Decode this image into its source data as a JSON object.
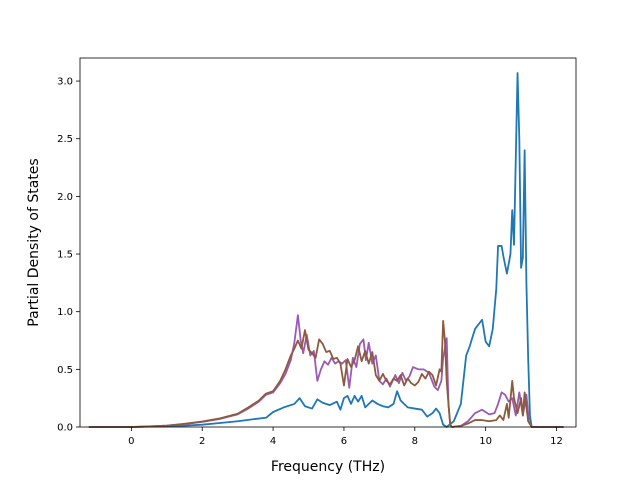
{
  "chart_data": {
    "type": "line",
    "title": "",
    "xlabel": "Frequency (THz)",
    "ylabel": "Partial Density of States",
    "xlim": [
      -1.45,
      12.55
    ],
    "ylim": [
      0.0,
      3.2
    ],
    "xticks": [
      0,
      2,
      4,
      6,
      8,
      10,
      12
    ],
    "xtick_labels": [
      "0",
      "2",
      "4",
      "6",
      "8",
      "10",
      "12"
    ],
    "yticks": [
      0.0,
      0.5,
      1.0,
      1.5,
      2.0,
      2.5,
      3.0
    ],
    "ytick_labels": [
      "0.0",
      "0.5",
      "1.0",
      "1.5",
      "2.0",
      "2.5",
      "3.0"
    ],
    "grid": false,
    "legend": "none",
    "series": [
      {
        "color": "#1f77b4",
        "points": [
          [
            -1.2,
            0
          ],
          [
            0,
            0
          ],
          [
            0.5,
            0.003
          ],
          [
            1,
            0.006
          ],
          [
            1.5,
            0.012
          ],
          [
            2,
            0.02
          ],
          [
            2.5,
            0.035
          ],
          [
            3,
            0.05
          ],
          [
            3.5,
            0.07
          ],
          [
            3.8,
            0.08
          ],
          [
            4,
            0.13
          ],
          [
            4.3,
            0.17
          ],
          [
            4.6,
            0.2
          ],
          [
            4.75,
            0.25
          ],
          [
            4.9,
            0.18
          ],
          [
            5.1,
            0.16
          ],
          [
            5.25,
            0.24
          ],
          [
            5.4,
            0.21
          ],
          [
            5.6,
            0.19
          ],
          [
            5.8,
            0.22
          ],
          [
            5.9,
            0.15
          ],
          [
            6.0,
            0.25
          ],
          [
            6.1,
            0.27
          ],
          [
            6.2,
            0.2
          ],
          [
            6.3,
            0.27
          ],
          [
            6.4,
            0.22
          ],
          [
            6.5,
            0.27
          ],
          [
            6.6,
            0.17
          ],
          [
            6.8,
            0.23
          ],
          [
            6.95,
            0.2
          ],
          [
            7.1,
            0.18
          ],
          [
            7.25,
            0.17
          ],
          [
            7.4,
            0.2
          ],
          [
            7.5,
            0.31
          ],
          [
            7.6,
            0.23
          ],
          [
            7.8,
            0.17
          ],
          [
            8.0,
            0.16
          ],
          [
            8.2,
            0.15
          ],
          [
            8.35,
            0.09
          ],
          [
            8.5,
            0.12
          ],
          [
            8.6,
            0.16
          ],
          [
            8.7,
            0.12
          ],
          [
            8.8,
            0.02
          ],
          [
            8.9,
            0
          ],
          [
            9.1,
            0.05
          ],
          [
            9.3,
            0.2
          ],
          [
            9.45,
            0.62
          ],
          [
            9.55,
            0.7
          ],
          [
            9.7,
            0.85
          ],
          [
            9.9,
            0.93
          ],
          [
            10.0,
            0.74
          ],
          [
            10.1,
            0.7
          ],
          [
            10.2,
            0.85
          ],
          [
            10.3,
            1.2
          ],
          [
            10.35,
            1.57
          ],
          [
            10.45,
            1.57
          ],
          [
            10.5,
            1.48
          ],
          [
            10.6,
            1.33
          ],
          [
            10.7,
            1.5
          ],
          [
            10.75,
            1.88
          ],
          [
            10.8,
            1.58
          ],
          [
            10.9,
            3.07
          ],
          [
            10.95,
            2.5
          ],
          [
            11.0,
            1.38
          ],
          [
            11.05,
            1.47
          ],
          [
            11.1,
            2.4
          ],
          [
            11.15,
            1.25
          ],
          [
            11.2,
            0.6
          ],
          [
            11.25,
            0.1
          ],
          [
            11.3,
            0
          ],
          [
            12.2,
            0
          ]
        ]
      },
      {
        "color": "#9b59b6",
        "points": [
          [
            -1.2,
            0
          ],
          [
            0,
            0
          ],
          [
            0.5,
            0.005
          ],
          [
            1,
            0.012
          ],
          [
            1.5,
            0.025
          ],
          [
            2,
            0.045
          ],
          [
            2.5,
            0.07
          ],
          [
            3,
            0.11
          ],
          [
            3.3,
            0.16
          ],
          [
            3.6,
            0.22
          ],
          [
            3.8,
            0.28
          ],
          [
            4.0,
            0.3
          ],
          [
            4.2,
            0.38
          ],
          [
            4.35,
            0.46
          ],
          [
            4.5,
            0.58
          ],
          [
            4.6,
            0.73
          ],
          [
            4.7,
            0.97
          ],
          [
            4.78,
            0.75
          ],
          [
            4.85,
            0.64
          ],
          [
            4.95,
            0.8
          ],
          [
            5.05,
            0.62
          ],
          [
            5.15,
            0.66
          ],
          [
            5.25,
            0.4
          ],
          [
            5.35,
            0.5
          ],
          [
            5.45,
            0.57
          ],
          [
            5.55,
            0.54
          ],
          [
            5.65,
            0.6
          ],
          [
            5.75,
            0.55
          ],
          [
            5.85,
            0.57
          ],
          [
            5.95,
            0.55
          ],
          [
            6.05,
            0.58
          ],
          [
            6.15,
            0.34
          ],
          [
            6.25,
            0.6
          ],
          [
            6.35,
            0.52
          ],
          [
            6.45,
            0.72
          ],
          [
            6.55,
            0.76
          ],
          [
            6.62,
            0.58
          ],
          [
            6.7,
            0.73
          ],
          [
            6.8,
            0.55
          ],
          [
            6.9,
            0.62
          ],
          [
            7.0,
            0.4
          ],
          [
            7.1,
            0.37
          ],
          [
            7.2,
            0.42
          ],
          [
            7.3,
            0.35
          ],
          [
            7.45,
            0.45
          ],
          [
            7.55,
            0.38
          ],
          [
            7.65,
            0.47
          ],
          [
            7.75,
            0.4
          ],
          [
            7.85,
            0.44
          ],
          [
            7.95,
            0.52
          ],
          [
            8.1,
            0.5
          ],
          [
            8.25,
            0.5
          ],
          [
            8.4,
            0.47
          ],
          [
            8.55,
            0.35
          ],
          [
            8.65,
            0.32
          ],
          [
            8.75,
            0.4
          ],
          [
            8.8,
            0.6
          ],
          [
            8.9,
            0.77
          ],
          [
            8.95,
            0.2
          ],
          [
            9.0,
            0.02
          ],
          [
            9.05,
            0
          ],
          [
            9.3,
            0.01
          ],
          [
            9.5,
            0.05
          ],
          [
            9.7,
            0.12
          ],
          [
            9.9,
            0.15
          ],
          [
            10.1,
            0.11
          ],
          [
            10.25,
            0.12
          ],
          [
            10.35,
            0.2
          ],
          [
            10.45,
            0.3
          ],
          [
            10.55,
            0.28
          ],
          [
            10.65,
            0.22
          ],
          [
            10.75,
            0.25
          ],
          [
            10.85,
            0.1
          ],
          [
            10.95,
            0.3
          ],
          [
            11.05,
            0.1
          ],
          [
            11.15,
            0.28
          ],
          [
            11.22,
            0.05
          ],
          [
            11.3,
            0
          ],
          [
            12.2,
            0
          ]
        ]
      },
      {
        "color": "#8c5a3c",
        "points": [
          [
            -1.2,
            0
          ],
          [
            0,
            0
          ],
          [
            0.5,
            0.005
          ],
          [
            1,
            0.012
          ],
          [
            1.5,
            0.028
          ],
          [
            2,
            0.048
          ],
          [
            2.5,
            0.075
          ],
          [
            3,
            0.115
          ],
          [
            3.3,
            0.17
          ],
          [
            3.6,
            0.23
          ],
          [
            3.8,
            0.29
          ],
          [
            4.0,
            0.31
          ],
          [
            4.2,
            0.4
          ],
          [
            4.35,
            0.5
          ],
          [
            4.5,
            0.62
          ],
          [
            4.6,
            0.68
          ],
          [
            4.7,
            0.75
          ],
          [
            4.8,
            0.68
          ],
          [
            4.9,
            0.84
          ],
          [
            5.0,
            0.67
          ],
          [
            5.1,
            0.64
          ],
          [
            5.2,
            0.6
          ],
          [
            5.3,
            0.76
          ],
          [
            5.4,
            0.72
          ],
          [
            5.5,
            0.65
          ],
          [
            5.6,
            0.66
          ],
          [
            5.7,
            0.59
          ],
          [
            5.8,
            0.6
          ],
          [
            5.9,
            0.55
          ],
          [
            6.0,
            0.36
          ],
          [
            6.1,
            0.59
          ],
          [
            6.2,
            0.52
          ],
          [
            6.3,
            0.58
          ],
          [
            6.4,
            0.7
          ],
          [
            6.5,
            0.57
          ],
          [
            6.6,
            0.66
          ],
          [
            6.7,
            0.55
          ],
          [
            6.8,
            0.65
          ],
          [
            6.9,
            0.45
          ],
          [
            7.0,
            0.4
          ],
          [
            7.1,
            0.46
          ],
          [
            7.2,
            0.4
          ],
          [
            7.3,
            0.37
          ],
          [
            7.4,
            0.42
          ],
          [
            7.5,
            0.4
          ],
          [
            7.6,
            0.45
          ],
          [
            7.7,
            0.36
          ],
          [
            7.8,
            0.42
          ],
          [
            7.9,
            0.38
          ],
          [
            8.0,
            0.36
          ],
          [
            8.1,
            0.39
          ],
          [
            8.2,
            0.46
          ],
          [
            8.3,
            0.42
          ],
          [
            8.4,
            0.48
          ],
          [
            8.5,
            0.45
          ],
          [
            8.6,
            0.36
          ],
          [
            8.7,
            0.5
          ],
          [
            8.75,
            0.48
          ],
          [
            8.8,
            0.92
          ],
          [
            8.85,
            0.75
          ],
          [
            8.9,
            0.4
          ],
          [
            8.95,
            0.2
          ],
          [
            9.0,
            0.02
          ],
          [
            9.05,
            0
          ],
          [
            9.3,
            0.01
          ],
          [
            9.5,
            0.03
          ],
          [
            9.7,
            0.06
          ],
          [
            9.9,
            0.06
          ],
          [
            10.1,
            0.05
          ],
          [
            10.3,
            0.06
          ],
          [
            10.4,
            0.1
          ],
          [
            10.5,
            0.06
          ],
          [
            10.6,
            0.2
          ],
          [
            10.65,
            0.08
          ],
          [
            10.75,
            0.4
          ],
          [
            10.8,
            0.25
          ],
          [
            10.9,
            0.12
          ],
          [
            11.0,
            0.25
          ],
          [
            11.05,
            0.1
          ],
          [
            11.1,
            0.3
          ],
          [
            11.2,
            0.05
          ],
          [
            11.3,
            0
          ],
          [
            12.2,
            0
          ]
        ]
      }
    ]
  }
}
